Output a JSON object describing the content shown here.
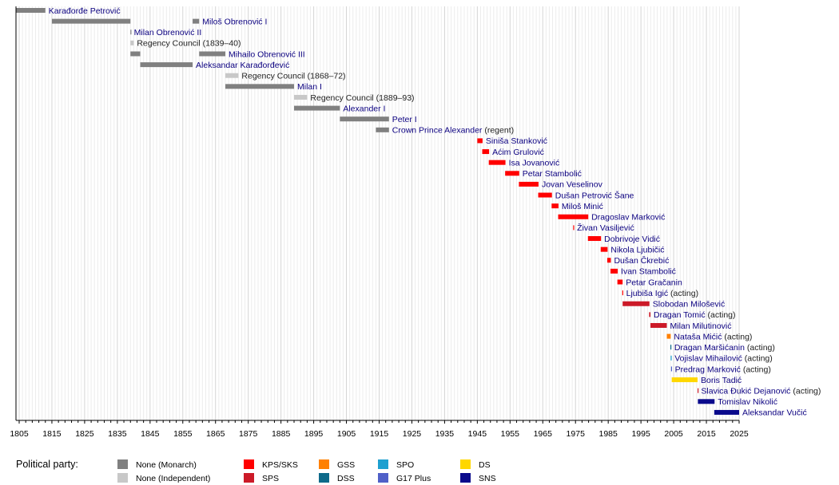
{
  "chart_data": {
    "type": "timeline",
    "title": "",
    "xlabel": "",
    "ylabel": "",
    "xlim": [
      1804,
      2025
    ],
    "x_ticks": [
      1805,
      1815,
      1825,
      1835,
      1845,
      1855,
      1865,
      1875,
      1885,
      1895,
      1905,
      1915,
      1925,
      1935,
      1945,
      1955,
      1965,
      1975,
      1985,
      1995,
      2005,
      2015,
      2025
    ],
    "grid": "vertical, yearly",
    "parties": {
      "monarch": {
        "name": "None (Monarch)",
        "color": "#808080"
      },
      "independent": {
        "name": "None (Independent)",
        "color": "#c8c8c8"
      },
      "kps": {
        "name": "KPS/SKS",
        "color": "#ff0000"
      },
      "sps": {
        "name": "SPS",
        "color": "#cc1a28"
      },
      "gss": {
        "name": "GSS",
        "color": "#ff8000"
      },
      "dss": {
        "name": "DSS",
        "color": "#0e6a8a"
      },
      "spo": {
        "name": "SPO",
        "color": "#1ea0d0"
      },
      "g17": {
        "name": "G17 Plus",
        "color": "#5060c8"
      },
      "ds": {
        "name": "DS",
        "color": "#ffd700"
      },
      "sns": {
        "name": "SNS",
        "color": "#0a0a8c"
      }
    },
    "rows": [
      {
        "name": "Karađorđe Petrović",
        "suffix": "",
        "link": true,
        "terms": [
          {
            "start": 1804,
            "end": 1813,
            "party": "monarch"
          }
        ]
      },
      {
        "name": "Miloš Obrenović I",
        "suffix": "",
        "link": true,
        "label_after_term": 1,
        "terms": [
          {
            "start": 1815,
            "end": 1839,
            "party": "monarch"
          },
          {
            "start": 1858,
            "end": 1860,
            "party": "monarch"
          }
        ]
      },
      {
        "name": "Milan Obrenović II",
        "suffix": "",
        "link": true,
        "terms": [
          {
            "start": 1839,
            "end": 1839.1,
            "party": "monarch"
          }
        ]
      },
      {
        "name": "Regency Council (1839–40)",
        "suffix": "",
        "link": false,
        "terms": [
          {
            "start": 1839,
            "end": 1840,
            "party": "independent"
          }
        ]
      },
      {
        "name": "Mihailo Obrenović III",
        "suffix": "",
        "link": true,
        "label_after_term": 1,
        "terms": [
          {
            "start": 1839,
            "end": 1842,
            "party": "monarch"
          },
          {
            "start": 1860,
            "end": 1868,
            "party": "monarch"
          }
        ]
      },
      {
        "name": "Aleksandar Karađorđević",
        "suffix": "",
        "link": true,
        "terms": [
          {
            "start": 1842,
            "end": 1858,
            "party": "monarch"
          }
        ]
      },
      {
        "name": "Regency Council (1868–72)",
        "suffix": "",
        "link": false,
        "terms": [
          {
            "start": 1868,
            "end": 1872,
            "party": "independent"
          }
        ]
      },
      {
        "name": "Milan I",
        "suffix": "",
        "link": true,
        "terms": [
          {
            "start": 1868,
            "end": 1889,
            "party": "monarch"
          }
        ]
      },
      {
        "name": "Regency Council (1889–93)",
        "suffix": "",
        "link": false,
        "terms": [
          {
            "start": 1889,
            "end": 1893,
            "party": "independent"
          }
        ]
      },
      {
        "name": "Alexander I",
        "suffix": "",
        "link": true,
        "terms": [
          {
            "start": 1889,
            "end": 1903,
            "party": "monarch"
          }
        ]
      },
      {
        "name": "Peter I",
        "suffix": "",
        "link": true,
        "terms": [
          {
            "start": 1903,
            "end": 1918,
            "party": "monarch"
          }
        ]
      },
      {
        "name": "Crown Prince Alexander",
        "suffix": " (regent)",
        "link": true,
        "terms": [
          {
            "start": 1914,
            "end": 1918,
            "party": "monarch"
          }
        ]
      },
      {
        "name": "Siniša Stanković",
        "suffix": "",
        "link": true,
        "terms": [
          {
            "start": 1945,
            "end": 1946.6,
            "party": "kps"
          }
        ]
      },
      {
        "name": "Aćim Grulović",
        "suffix": "",
        "link": true,
        "terms": [
          {
            "start": 1946.5,
            "end": 1948.6,
            "party": "kps"
          }
        ]
      },
      {
        "name": "Isa Jovanović",
        "suffix": "",
        "link": true,
        "terms": [
          {
            "start": 1948.5,
            "end": 1953.6,
            "party": "kps"
          }
        ]
      },
      {
        "name": "Petar Stambolić",
        "suffix": "",
        "link": true,
        "terms": [
          {
            "start": 1953.5,
            "end": 1957.8,
            "party": "kps"
          }
        ]
      },
      {
        "name": "Jovan Veselinov",
        "suffix": "",
        "link": true,
        "terms": [
          {
            "start": 1957.7,
            "end": 1963.7,
            "party": "kps"
          }
        ]
      },
      {
        "name": "Dušan Petrović Šane",
        "suffix": "",
        "link": true,
        "terms": [
          {
            "start": 1963.6,
            "end": 1967.8,
            "party": "kps"
          }
        ]
      },
      {
        "name": "Miloš Minić",
        "suffix": "",
        "link": true,
        "terms": [
          {
            "start": 1967.7,
            "end": 1969.8,
            "party": "kps"
          }
        ]
      },
      {
        "name": "Dragoslav Marković",
        "suffix": "",
        "link": true,
        "terms": [
          {
            "start": 1969.7,
            "end": 1978.9,
            "party": "kps"
          }
        ]
      },
      {
        "name": "Živan Vasiljević",
        "suffix": "",
        "link": true,
        "terms": [
          {
            "start": 1974.3,
            "end": 1974.5,
            "party": "kps"
          }
        ]
      },
      {
        "name": "Dobrivoje Vidić",
        "suffix": "",
        "link": true,
        "terms": [
          {
            "start": 1978.8,
            "end": 1982.8,
            "party": "kps"
          }
        ]
      },
      {
        "name": "Nikola Ljubičić",
        "suffix": "",
        "link": true,
        "terms": [
          {
            "start": 1982.7,
            "end": 1984.8,
            "party": "kps"
          }
        ]
      },
      {
        "name": "Dušan Čkrebić",
        "suffix": "",
        "link": true,
        "terms": [
          {
            "start": 1984.7,
            "end": 1985.8,
            "party": "kps"
          }
        ]
      },
      {
        "name": "Ivan Stambolić",
        "suffix": "",
        "link": true,
        "terms": [
          {
            "start": 1985.7,
            "end": 1987.9,
            "party": "kps"
          }
        ]
      },
      {
        "name": "Petar Gračanin",
        "suffix": "",
        "link": true,
        "terms": [
          {
            "start": 1987.8,
            "end": 1989.4,
            "party": "kps"
          }
        ]
      },
      {
        "name": "Ljubiša Igić",
        "suffix": " (acting)",
        "link": true,
        "terms": [
          {
            "start": 1989.3,
            "end": 1989.5,
            "party": "kps"
          }
        ]
      },
      {
        "name": "Slobodan Milošević",
        "suffix": "",
        "link": true,
        "terms": [
          {
            "start": 1989.4,
            "end": 1997.6,
            "party": "sps"
          }
        ]
      },
      {
        "name": "Dragan Tomić",
        "suffix": " (acting)",
        "link": true,
        "terms": [
          {
            "start": 1997.5,
            "end": 1997.9,
            "party": "sps"
          }
        ]
      },
      {
        "name": "Milan Milutinović",
        "suffix": "",
        "link": true,
        "terms": [
          {
            "start": 1997.9,
            "end": 2002.9,
            "party": "sps"
          }
        ]
      },
      {
        "name": "Nataša Mićić",
        "suffix": " (acting)",
        "link": true,
        "terms": [
          {
            "start": 2002.9,
            "end": 2004.1,
            "party": "gss"
          }
        ]
      },
      {
        "name": "Dragan Maršićanin",
        "suffix": " (acting)",
        "link": true,
        "terms": [
          {
            "start": 2004.0,
            "end": 2004.2,
            "party": "dss"
          }
        ]
      },
      {
        "name": "Vojislav Mihailović",
        "suffix": " (acting)",
        "link": true,
        "terms": [
          {
            "start": 2004.1,
            "end": 2004.3,
            "party": "spo"
          }
        ]
      },
      {
        "name": "Predrag Marković",
        "suffix": " (acting)",
        "link": true,
        "terms": [
          {
            "start": 2004.2,
            "end": 2004.4,
            "party": "g17"
          }
        ]
      },
      {
        "name": "Boris Tadić",
        "suffix": "",
        "link": true,
        "terms": [
          {
            "start": 2004.4,
            "end": 2012.3,
            "party": "ds"
          }
        ]
      },
      {
        "name": "Slavica Đukić Dejanović",
        "suffix": " (acting)",
        "link": true,
        "terms": [
          {
            "start": 2012.3,
            "end": 2012.4,
            "party": "sps"
          }
        ]
      },
      {
        "name": "Tomislav Nikolić",
        "suffix": "",
        "link": true,
        "terms": [
          {
            "start": 2012.4,
            "end": 2017.5,
            "party": "sns"
          }
        ]
      },
      {
        "name": "Aleksandar Vučić",
        "suffix": "",
        "link": true,
        "terms": [
          {
            "start": 2017.4,
            "end": 2025,
            "party": "sns"
          }
        ]
      }
    ],
    "legend": {
      "title": "Political party:",
      "placement": "bottom",
      "columns": [
        [
          "monarch",
          "independent"
        ],
        [
          "kps",
          "sps"
        ],
        [
          "gss",
          "dss"
        ],
        [
          "spo",
          "g17"
        ],
        [
          "ds",
          "sns"
        ]
      ]
    }
  }
}
